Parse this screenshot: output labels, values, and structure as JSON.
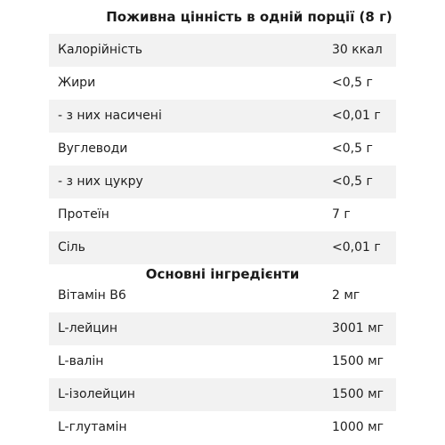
{
  "nutrition": {
    "title": "Поживна цінність в одній порції (8 г)",
    "rows": [
      {
        "label": "Калорійність",
        "value": "30 ккал"
      },
      {
        "label": "Жири",
        "value": "<0,5 г"
      },
      {
        "label": "- з них насичені",
        "value": "<0,01 г"
      },
      {
        "label": "Вуглеводи",
        "value": "<0,5 г"
      },
      {
        "label": "- з них цукру",
        "value": "<0,5 г"
      },
      {
        "label": "Протеїн",
        "value": "7 г"
      },
      {
        "label": "Сіль",
        "value": "<0,01 г"
      }
    ]
  },
  "ingredients": {
    "title": "Основні інгредієнти",
    "rows": [
      {
        "label": "Вітамін В6",
        "value": "2 мг"
      },
      {
        "label": "L-лейцин",
        "value": "3001 мг"
      },
      {
        "label": "L-валін",
        "value": "1500 мг"
      },
      {
        "label": "L-ізолейцин",
        "value": "1500 мг"
      },
      {
        "label": "L-глутамін",
        "value": "1000 мг"
      }
    ]
  }
}
